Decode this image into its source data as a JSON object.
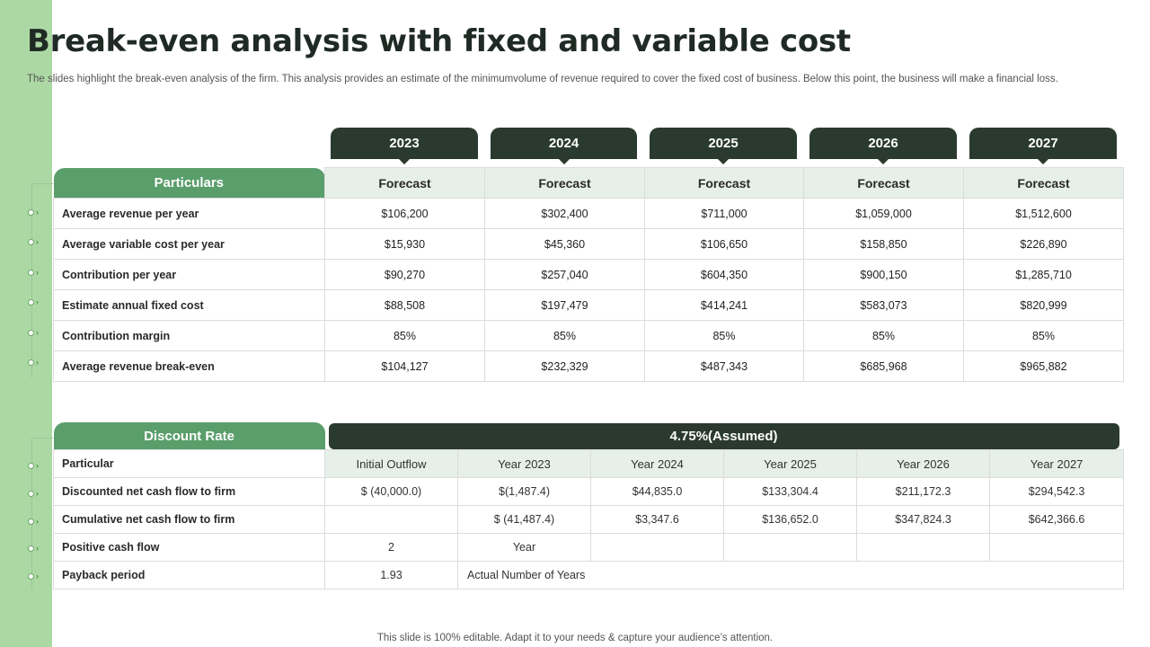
{
  "title": "Break-even analysis with fixed and variable cost",
  "subtitle": "The slides highlight the break-even analysis of the firm. This analysis provides an estimate of the minimumvolume of revenue required to cover the fixed cost of business. Below this point, the business will make a financial loss.",
  "years": [
    "2023",
    "2024",
    "2025",
    "2026",
    "2027"
  ],
  "table1": {
    "header_label": "Particulars",
    "column_header": "Forecast",
    "rows": [
      {
        "label": "Average revenue per year",
        "values": [
          "$106,200",
          "$302,400",
          "$711,000",
          "$1,059,000",
          "$1,512,600"
        ]
      },
      {
        "label": "Average variable cost per year",
        "values": [
          "$15,930",
          "$45,360",
          "$106,650",
          "$158,850",
          "$226,890"
        ]
      },
      {
        "label": "Contribution per year",
        "values": [
          "$90,270",
          "$257,040",
          "$604,350",
          "$900,150",
          "$1,285,710"
        ]
      },
      {
        "label": "Estimate annual fixed cost",
        "values": [
          "$88,508",
          "$197,479",
          "$414,241",
          "$583,073",
          "$820,999"
        ]
      },
      {
        "label": "Contribution margin",
        "values": [
          "85%",
          "85%",
          "85%",
          "85%",
          "85%"
        ]
      },
      {
        "label": "Average revenue break-even",
        "values": [
          "$104,127",
          "$232,329",
          "$487,343",
          "$685,968",
          "$965,882"
        ]
      }
    ]
  },
  "table2": {
    "header_label": "Discount Rate",
    "rate": "4.75%(Assumed)",
    "sub_label": "Particular",
    "columns": [
      "Initial Outflow",
      "Year 2023",
      "Year 2024",
      "Year 2025",
      "Year 2026",
      "Year 2027"
    ],
    "rows": [
      {
        "label": "Discounted net cash flow to firm",
        "values": [
          "$ (40,000.0)",
          "$(1,487.4)",
          "$44,835.0",
          "$133,304.4",
          "$211,172.3",
          "$294,542.3"
        ]
      },
      {
        "label": "Cumulative net cash flow to firm",
        "values": [
          "",
          "$ (41,487.4)",
          "$3,347.6",
          "$136,652.0",
          "$347,824.3",
          "$642,366.6"
        ]
      },
      {
        "label": "Positive cash flow",
        "values": [
          "2",
          "Year",
          "",
          "",
          "",
          ""
        ]
      },
      {
        "label": "Payback period",
        "value": "1.93",
        "note": "Actual Number of Years"
      }
    ]
  },
  "footer": "This slide is 100% editable. Adapt it to your needs & capture your audience’s attention."
}
